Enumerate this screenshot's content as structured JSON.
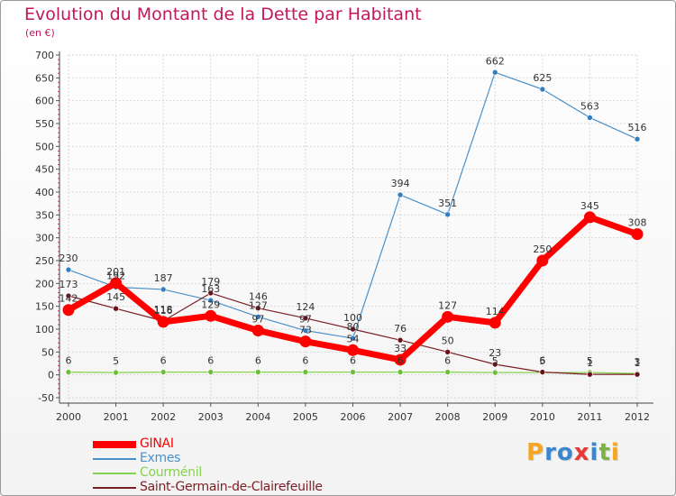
{
  "title": "Evolution du Montant de la Dette par Habitant",
  "subtitle": "(en €)",
  "logo": {
    "text": "Proxiti",
    "letters": [
      {
        "ch": "P",
        "color": "#f5a623"
      },
      {
        "ch": "r",
        "color": "#3a86d1"
      },
      {
        "ch": "o",
        "color": "#3a86d1"
      },
      {
        "ch": "x",
        "color": "#e53935"
      },
      {
        "ch": "i",
        "color": "#3a86d1"
      },
      {
        "ch": "t",
        "color": "#7cb342"
      },
      {
        "ch": "i",
        "color": "#f5a623"
      }
    ]
  },
  "chart_data": {
    "type": "line",
    "x": [
      2000,
      2001,
      2002,
      2003,
      2004,
      2005,
      2006,
      2007,
      2008,
      2009,
      2010,
      2011,
      2012
    ],
    "ylim": [
      -50,
      700
    ],
    "yticks": [
      -50,
      0,
      50,
      100,
      150,
      200,
      250,
      300,
      350,
      400,
      450,
      500,
      550,
      600,
      650,
      700
    ],
    "grid": true,
    "legend_position": "bottom-left",
    "series": [
      {
        "name": "Exmes",
        "color": "#4a90c9",
        "marker": "#2f7fc1",
        "width": 1.2,
        "values": [
          230,
          192,
          187,
          163,
          127,
          97,
          80,
          394,
          351,
          662,
          625,
          563,
          516
        ],
        "labels": [
          "230",
          "192",
          "187",
          "163",
          "127",
          "97",
          "80",
          "394",
          "351",
          "662",
          "625",
          "563",
          "516"
        ]
      },
      {
        "name": "Courménil",
        "color": "#86d150",
        "marker": "#6cbf3a",
        "width": 1.2,
        "values": [
          6,
          5,
          6,
          6,
          6,
          6,
          6,
          6,
          6,
          5,
          5,
          5,
          3
        ],
        "labels": [
          "6",
          "5",
          "6",
          "6",
          "6",
          "6",
          "6",
          "6",
          "6",
          "5",
          "5",
          "5",
          "3"
        ]
      },
      {
        "name": "Saint-Germain-de-Clairefeuille",
        "color": "#7a1f24",
        "marker": "#6b1018",
        "width": 1.2,
        "values": [
          173,
          145,
          118,
          179,
          146,
          124,
          100,
          76,
          50,
          23,
          6,
          1,
          1
        ],
        "labels": [
          "173",
          "145",
          "118",
          "179",
          "146",
          "124",
          "100",
          "76",
          "50",
          "23",
          "6",
          "1",
          "1"
        ]
      },
      {
        "name": "GINAI",
        "color": "#ff0000",
        "marker": "#ff0000",
        "width": 7,
        "values": [
          142,
          201,
          116,
          129,
          97,
          73,
          54,
          33,
          127,
          114,
          250,
          345,
          308
        ],
        "labels": [
          "142",
          "201",
          "116",
          "129",
          "97",
          "73",
          "54",
          "33",
          "127",
          "114",
          "250",
          "345",
          "308"
        ]
      }
    ],
    "legend_order": [
      "GINAI",
      "Exmes",
      "Courménil",
      "Saint-Germain-de-Clairefeuille"
    ]
  }
}
